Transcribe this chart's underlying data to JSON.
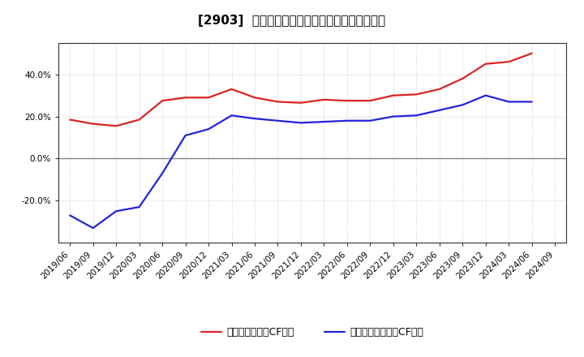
{
  "title": "[2903]  有利子負債キャッシュフロー比率の推移",
  "legend_red": "有利子負債営業CF比率",
  "legend_blue": "有利子負債フリーCF比率",
  "x_labels": [
    "2019/06",
    "2019/09",
    "2019/12",
    "2020/03",
    "2020/06",
    "2020/09",
    "2020/12",
    "2021/03",
    "2021/06",
    "2021/09",
    "2021/12",
    "2022/03",
    "2022/06",
    "2022/09",
    "2022/12",
    "2023/03",
    "2023/06",
    "2023/09",
    "2023/12",
    "2024/03",
    "2024/06",
    "2024/09"
  ],
  "red_values": [
    18.5,
    16.5,
    15.5,
    18.5,
    27.5,
    29.0,
    29.0,
    33.0,
    29.0,
    27.0,
    26.5,
    28.0,
    27.5,
    27.5,
    30.0,
    30.5,
    33.0,
    38.0,
    45.0,
    46.0,
    50.0,
    null
  ],
  "blue_values": [
    -27.0,
    -33.0,
    -25.0,
    -23.0,
    -7.0,
    11.0,
    14.0,
    20.5,
    19.0,
    18.0,
    17.0,
    17.5,
    18.0,
    18.0,
    20.0,
    20.5,
    23.0,
    25.5,
    30.0,
    27.0,
    27.0,
    null
  ],
  "ylim": [
    -40,
    55
  ],
  "ytick_vals": [
    -20.0,
    0.0,
    20.0,
    40.0
  ],
  "ytick_labels": [
    "-20.0%",
    "0.0%",
    "20.0%",
    "40.0%"
  ],
  "color_red": "#dd2222",
  "color_blue": "#2222dd",
  "bg_color": "#ffffff",
  "plot_bg": "#ffffff",
  "grid_color": "#bbbbbb",
  "zero_line_color": "#888888",
  "spine_color": "#333333",
  "title_fontsize": 11,
  "legend_fontsize": 9,
  "tick_fontsize": 7.5,
  "linewidth": 1.6
}
